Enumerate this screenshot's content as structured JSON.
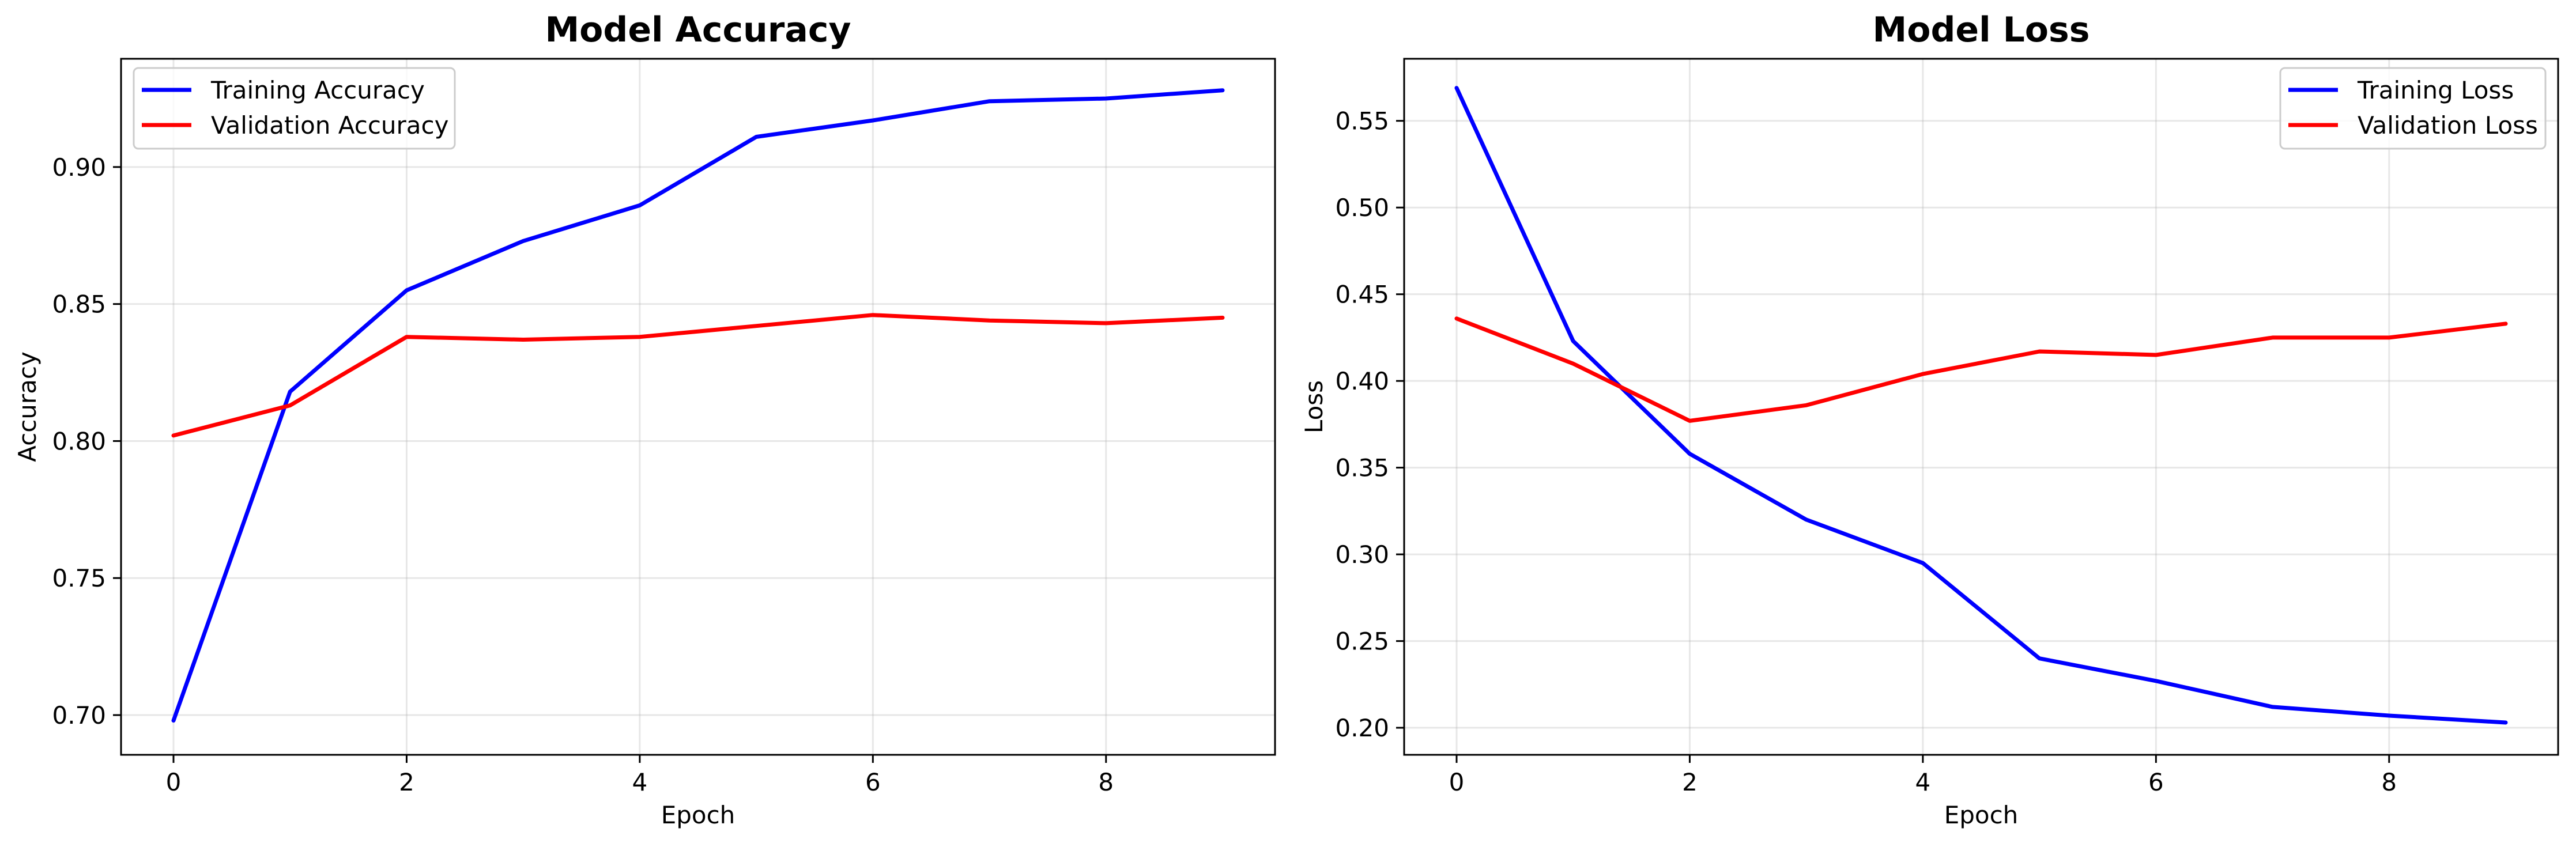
{
  "chart_data": [
    {
      "type": "line",
      "title": "Model Accuracy",
      "xlabel": "Epoch",
      "ylabel": "Accuracy",
      "xlim": [
        -0.45,
        9.45
      ],
      "ylim": [
        0.6855,
        0.9395
      ],
      "xticks": [
        0,
        2,
        4,
        6,
        8
      ],
      "yticks": [
        0.7,
        0.75,
        0.8,
        0.85,
        0.9
      ],
      "xtick_labels": [
        "0",
        "2",
        "4",
        "6",
        "8"
      ],
      "ytick_labels": [
        "0.70",
        "0.75",
        "0.80",
        "0.85",
        "0.90"
      ],
      "grid": true,
      "legend_position": "upper-left",
      "x": [
        0,
        1,
        2,
        3,
        4,
        5,
        6,
        7,
        8,
        9
      ],
      "series": [
        {
          "name": "Training Accuracy",
          "color": "#0000ff",
          "values": [
            0.698,
            0.818,
            0.855,
            0.873,
            0.886,
            0.911,
            0.917,
            0.924,
            0.925,
            0.928
          ]
        },
        {
          "name": "Validation Accuracy",
          "color": "#ff0000",
          "values": [
            0.802,
            0.813,
            0.838,
            0.837,
            0.838,
            0.842,
            0.846,
            0.844,
            0.843,
            0.845
          ]
        }
      ]
    },
    {
      "type": "line",
      "title": "Model Loss",
      "xlabel": "Epoch",
      "ylabel": "Loss",
      "xlim": [
        -0.45,
        9.45
      ],
      "ylim": [
        0.1844,
        0.5858
      ],
      "xticks": [
        0,
        2,
        4,
        6,
        8
      ],
      "yticks": [
        0.2,
        0.25,
        0.3,
        0.35,
        0.4,
        0.45,
        0.5,
        0.55
      ],
      "xtick_labels": [
        "0",
        "2",
        "4",
        "6",
        "8"
      ],
      "ytick_labels": [
        "0.20",
        "0.25",
        "0.30",
        "0.35",
        "0.40",
        "0.45",
        "0.50",
        "0.55"
      ],
      "grid": true,
      "legend_position": "upper-right",
      "x": [
        0,
        1,
        2,
        3,
        4,
        5,
        6,
        7,
        8,
        9
      ],
      "series": [
        {
          "name": "Training Loss",
          "color": "#0000ff",
          "values": [
            0.569,
            0.423,
            0.358,
            0.32,
            0.295,
            0.24,
            0.227,
            0.212,
            0.207,
            0.203
          ]
        },
        {
          "name": "Validation Loss",
          "color": "#ff0000",
          "values": [
            0.436,
            0.41,
            0.377,
            0.386,
            0.404,
            0.417,
            0.415,
            0.425,
            0.425,
            0.433
          ]
        }
      ]
    }
  ]
}
